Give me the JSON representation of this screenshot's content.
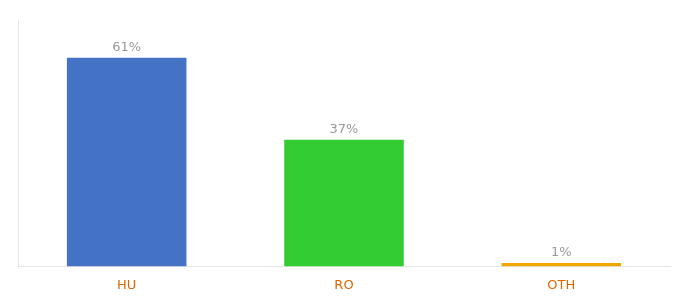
{
  "chart_data": {
    "type": "bar",
    "categories": [
      "HU",
      "RO",
      "OTH"
    ],
    "values": [
      61,
      37,
      1
    ],
    "value_labels": [
      "61%",
      "37%",
      "1%"
    ],
    "colors": [
      "#4472c4",
      "#33cc33",
      "#f0a800"
    ],
    "ylim": [
      0,
      72
    ],
    "grid": false,
    "tick_labels": "x"
  }
}
